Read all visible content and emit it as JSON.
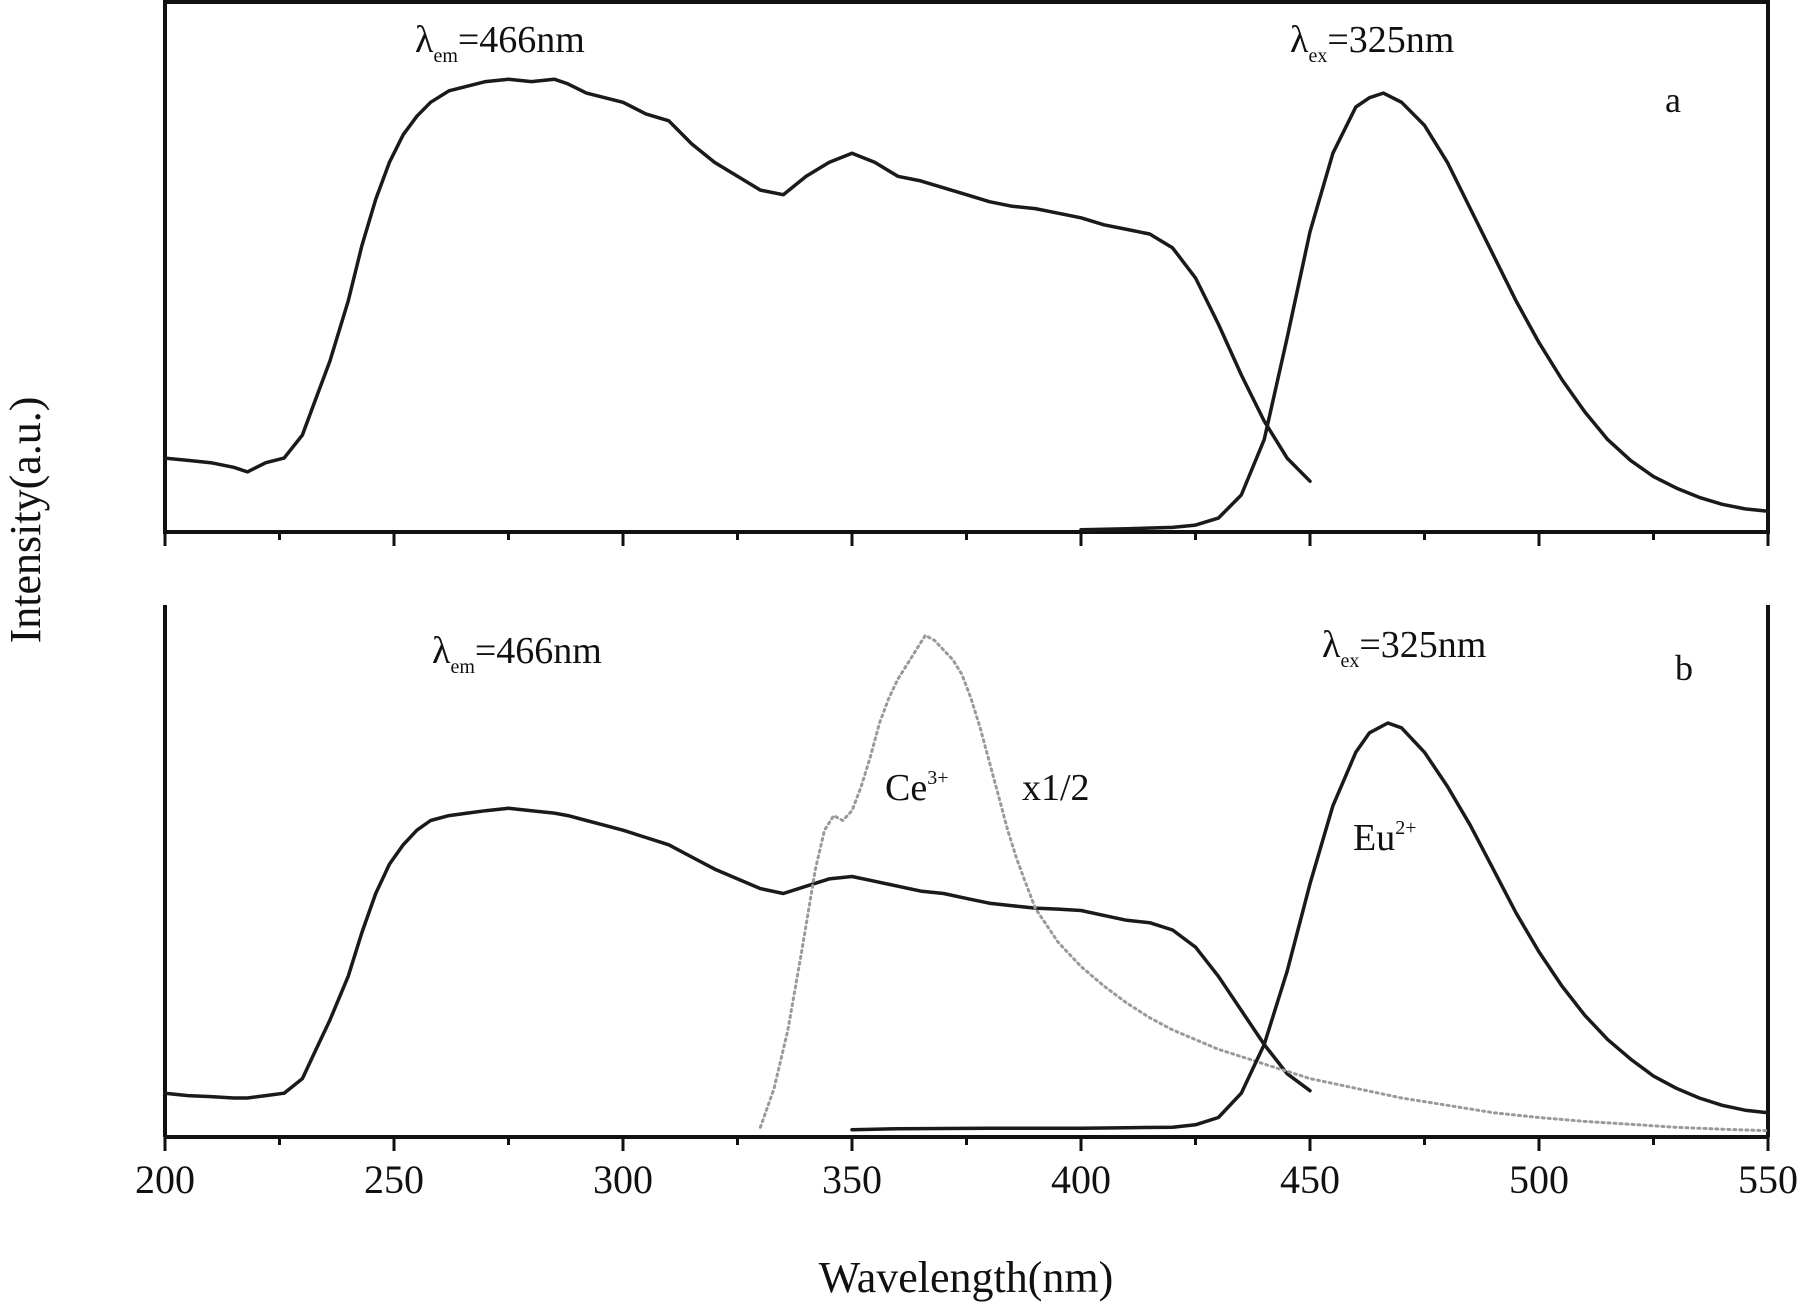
{
  "chart_data": [
    {
      "type": "line",
      "panel": "a",
      "xlim": [
        200,
        550
      ],
      "xticks": [
        200,
        250,
        300,
        350,
        400,
        450,
        500,
        550
      ],
      "xlabel": "Wavelength(nm)",
      "ylabel": "Intensity(a.u.)",
      "ylim": [
        0,
        1
      ],
      "grid": false,
      "annotations": [
        {
          "text": "a",
          "role": "panel-label"
        },
        {
          "main": "λ",
          "sub": "em",
          "rest": "=466nm",
          "role": "excitation-condition"
        },
        {
          "main": "λ",
          "sub": "ex",
          "rest": "=325nm",
          "role": "emission-condition"
        }
      ],
      "series": [
        {
          "color": "#1a1a1a",
          "x": [
            200,
            205,
            210,
            215,
            218,
            222,
            226,
            230,
            233,
            236,
            240,
            243,
            246,
            249,
            252,
            255,
            258,
            262,
            266,
            270,
            275,
            280,
            285,
            288,
            292,
            296,
            300,
            305,
            310,
            315,
            320,
            325,
            330,
            335,
            340,
            345,
            350,
            355,
            360,
            365,
            370,
            375,
            380,
            385,
            390,
            395,
            400,
            405,
            410,
            415,
            420,
            425,
            430,
            435,
            440,
            445,
            450
          ],
          "y": [
            0.16,
            0.155,
            0.15,
            0.14,
            0.13,
            0.15,
            0.16,
            0.21,
            0.29,
            0.37,
            0.5,
            0.62,
            0.72,
            0.8,
            0.86,
            0.9,
            0.93,
            0.955,
            0.965,
            0.975,
            0.98,
            0.975,
            0.98,
            0.97,
            0.95,
            0.94,
            0.93,
            0.905,
            0.89,
            0.84,
            0.8,
            0.77,
            0.74,
            0.73,
            0.77,
            0.8,
            0.82,
            0.8,
            0.77,
            0.76,
            0.745,
            0.73,
            0.715,
            0.705,
            0.7,
            0.69,
            0.68,
            0.665,
            0.655,
            0.645,
            0.615,
            0.55,
            0.45,
            0.34,
            0.24,
            0.16,
            0.11
          ]
        },
        {
          "color": "#1a1a1a",
          "x": [
            400,
            410,
            420,
            425,
            430,
            435,
            440,
            445,
            450,
            455,
            460,
            463,
            466,
            470,
            475,
            480,
            485,
            490,
            495,
            500,
            505,
            510,
            515,
            520,
            525,
            530,
            535,
            540,
            545,
            550
          ],
          "y": [
            0.005,
            0.007,
            0.01,
            0.015,
            0.03,
            0.08,
            0.2,
            0.42,
            0.65,
            0.82,
            0.92,
            0.94,
            0.95,
            0.93,
            0.88,
            0.8,
            0.7,
            0.6,
            0.5,
            0.41,
            0.33,
            0.26,
            0.2,
            0.155,
            0.12,
            0.095,
            0.075,
            0.06,
            0.05,
            0.045
          ]
        }
      ]
    },
    {
      "type": "line",
      "panel": "b",
      "xlim": [
        200,
        550
      ],
      "xticks": [
        200,
        250,
        300,
        350,
        400,
        450,
        500,
        550
      ],
      "xlabel": "Wavelength(nm)",
      "ylabel": "Intensity(a.u.)",
      "ylim": [
        0,
        1
      ],
      "grid": false,
      "annotations": [
        {
          "text": "b",
          "role": "panel-label"
        },
        {
          "main": "λ",
          "sub": "em",
          "rest": "=466nm",
          "role": "excitation-condition"
        },
        {
          "main": "λ",
          "sub": "ex",
          "rest": "=325nm",
          "role": "emission-condition"
        },
        {
          "main": "Ce",
          "sup": "3+",
          "rest": "",
          "role": "dotted-series-label"
        },
        {
          "text": "x1/2",
          "role": "scale-note"
        },
        {
          "main": "Eu",
          "sup": "2+",
          "rest": "",
          "role": "eu-series-label"
        }
      ],
      "series": [
        {
          "color": "#1a1a1a",
          "x": [
            200,
            205,
            210,
            215,
            218,
            222,
            226,
            230,
            233,
            236,
            240,
            243,
            246,
            249,
            252,
            255,
            258,
            262,
            266,
            270,
            275,
            280,
            285,
            288,
            292,
            296,
            300,
            305,
            310,
            315,
            320,
            325,
            330,
            335,
            340,
            345,
            350,
            355,
            360,
            365,
            370,
            375,
            380,
            385,
            390,
            395,
            400,
            405,
            410,
            415,
            420,
            425,
            430,
            435,
            440,
            445,
            450
          ],
          "y": [
            0.09,
            0.085,
            0.083,
            0.08,
            0.08,
            0.085,
            0.09,
            0.12,
            0.18,
            0.24,
            0.33,
            0.42,
            0.5,
            0.56,
            0.6,
            0.63,
            0.65,
            0.66,
            0.665,
            0.67,
            0.675,
            0.67,
            0.665,
            0.66,
            0.65,
            0.64,
            0.63,
            0.615,
            0.6,
            0.575,
            0.55,
            0.53,
            0.51,
            0.5,
            0.515,
            0.53,
            0.535,
            0.525,
            0.515,
            0.505,
            0.5,
            0.49,
            0.48,
            0.475,
            0.47,
            0.468,
            0.465,
            0.455,
            0.445,
            0.44,
            0.425,
            0.39,
            0.33,
            0.26,
            0.19,
            0.13,
            0.095
          ]
        },
        {
          "name": "Ce³⁺",
          "color": "#9a9a9a",
          "dashed": true,
          "x": [
            330,
            333,
            336,
            339,
            342,
            344,
            346,
            348,
            350,
            352,
            354,
            356,
            358,
            360,
            362,
            364,
            366,
            368,
            370,
            372,
            374,
            376,
            378,
            380,
            382,
            384,
            386,
            388,
            390,
            395,
            400,
            405,
            410,
            415,
            420,
            425,
            430,
            435,
            440,
            450,
            460,
            470,
            480,
            490,
            500,
            510,
            520,
            530,
            540,
            550
          ],
          "y": [
            0.02,
            0.1,
            0.22,
            0.38,
            0.55,
            0.63,
            0.66,
            0.65,
            0.67,
            0.72,
            0.78,
            0.85,
            0.9,
            0.94,
            0.97,
            1.0,
            1.03,
            1.02,
            1.0,
            0.98,
            0.95,
            0.9,
            0.84,
            0.77,
            0.7,
            0.63,
            0.57,
            0.52,
            0.47,
            0.4,
            0.35,
            0.31,
            0.275,
            0.245,
            0.22,
            0.2,
            0.18,
            0.165,
            0.15,
            0.12,
            0.1,
            0.08,
            0.065,
            0.05,
            0.04,
            0.032,
            0.026,
            0.02,
            0.016,
            0.013
          ]
        },
        {
          "color": "#1a1a1a",
          "x": [
            350,
            360,
            380,
            400,
            410,
            420,
            425,
            430,
            435,
            440,
            445,
            450,
            455,
            460,
            463,
            467,
            470,
            475,
            480,
            485,
            490,
            495,
            500,
            505,
            510,
            515,
            520,
            525,
            530,
            535,
            540,
            545,
            550
          ],
          "y": [
            0.015,
            0.017,
            0.018,
            0.018,
            0.019,
            0.02,
            0.025,
            0.04,
            0.09,
            0.19,
            0.34,
            0.52,
            0.68,
            0.79,
            0.83,
            0.85,
            0.84,
            0.79,
            0.72,
            0.64,
            0.55,
            0.46,
            0.38,
            0.31,
            0.25,
            0.2,
            0.16,
            0.125,
            0.1,
            0.08,
            0.065,
            0.055,
            0.05
          ]
        }
      ]
    }
  ]
}
